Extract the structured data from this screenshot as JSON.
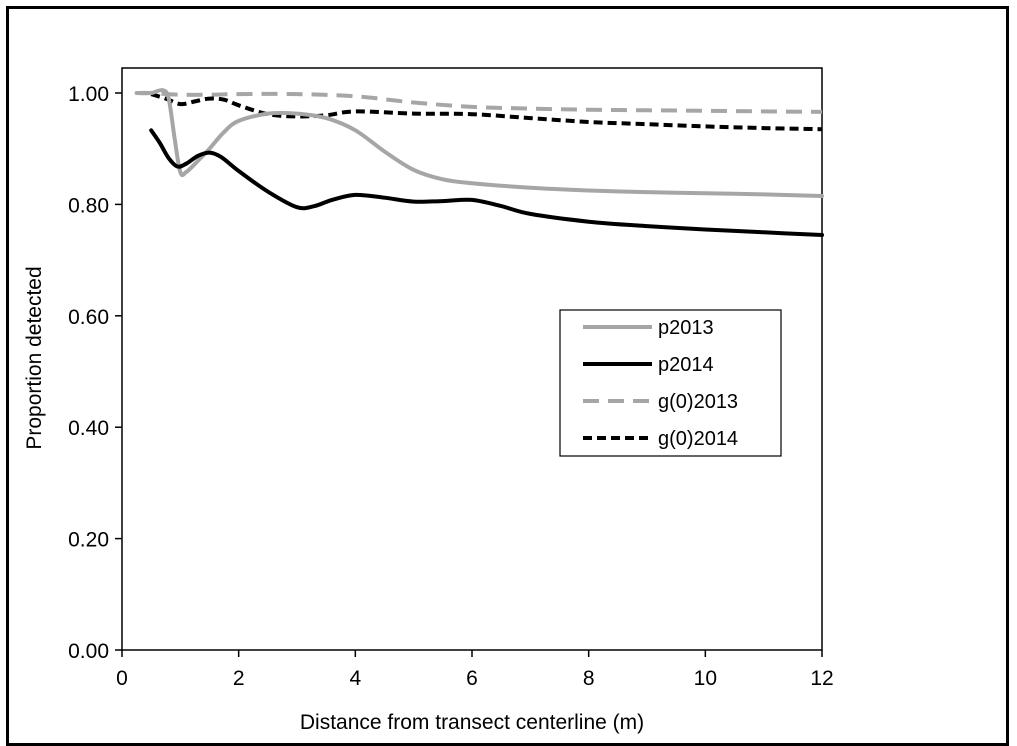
{
  "chart_data": {
    "type": "line",
    "title": "",
    "xlabel": "Distance from transect centerline (m)",
    "ylabel": "Proportion detected",
    "xlim": [
      0,
      12
    ],
    "ylim": [
      0,
      1.05
    ],
    "x_ticks": [
      0,
      2,
      4,
      6,
      8,
      10,
      12
    ],
    "y_ticks": [
      0,
      0.2,
      0.4,
      0.6,
      0.8,
      1.0
    ],
    "x_tick_labels": [
      "0",
      "2",
      "4",
      "6",
      "8",
      "10",
      "12"
    ],
    "y_tick_labels": [
      "0.00",
      "0.20",
      "0.40",
      "0.60",
      "0.80",
      "1.00"
    ],
    "grid": false,
    "legend_position": "center-right",
    "series": [
      {
        "name": "p2013",
        "color": "#a6a6a6",
        "dash": "solid",
        "x": [
          0.25,
          0.5,
          0.7,
          0.8,
          0.9,
          1.0,
          1.1,
          1.3,
          1.5,
          1.75,
          2.0,
          2.5,
          3.0,
          3.5,
          4.0,
          4.5,
          5.0,
          5.5,
          6.0,
          7.0,
          8.0,
          9.0,
          10.0,
          11.0,
          12.0
        ],
        "y": [
          1.0,
          1.0,
          1.005,
          0.99,
          0.92,
          0.858,
          0.858,
          0.878,
          0.9,
          0.93,
          0.95,
          0.963,
          0.963,
          0.955,
          0.933,
          0.895,
          0.862,
          0.845,
          0.838,
          0.83,
          0.825,
          0.822,
          0.82,
          0.818,
          0.815
        ]
      },
      {
        "name": "p2014",
        "color": "#000000",
        "dash": "solid",
        "x": [
          0.5,
          0.65,
          0.8,
          0.95,
          1.1,
          1.3,
          1.5,
          1.7,
          2.0,
          2.5,
          3.0,
          3.3,
          3.6,
          4.0,
          4.5,
          5.0,
          5.5,
          6.0,
          6.5,
          7.0,
          8.0,
          9.0,
          10.0,
          11.0,
          12.0
        ],
        "y": [
          0.933,
          0.91,
          0.883,
          0.868,
          0.873,
          0.887,
          0.893,
          0.885,
          0.86,
          0.823,
          0.795,
          0.797,
          0.808,
          0.817,
          0.812,
          0.805,
          0.806,
          0.808,
          0.797,
          0.783,
          0.769,
          0.761,
          0.755,
          0.75,
          0.745
        ]
      },
      {
        "name": "g(0)2013",
        "color": "#a6a6a6",
        "dash": "dashed",
        "x": [
          0.25,
          0.5,
          1.0,
          1.5,
          2.0,
          3.0,
          4.0,
          5.0,
          6.0,
          7.0,
          8.0,
          9.0,
          10.0,
          11.0,
          12.0
        ],
        "y": [
          1.0,
          1.0,
          0.997,
          0.997,
          0.998,
          0.998,
          0.994,
          0.983,
          0.975,
          0.972,
          0.97,
          0.969,
          0.968,
          0.967,
          0.966
        ]
      },
      {
        "name": "g(0)2014",
        "color": "#000000",
        "dash": "dashed",
        "x": [
          0.5,
          0.75,
          1.0,
          1.25,
          1.5,
          1.75,
          2.0,
          2.5,
          3.0,
          3.5,
          4.0,
          5.0,
          6.0,
          7.0,
          8.0,
          9.0,
          10.0,
          11.0,
          12.0
        ],
        "y": [
          0.998,
          0.99,
          0.98,
          0.985,
          0.99,
          0.988,
          0.978,
          0.962,
          0.958,
          0.96,
          0.967,
          0.963,
          0.962,
          0.955,
          0.948,
          0.944,
          0.94,
          0.937,
          0.935
        ]
      }
    ]
  }
}
